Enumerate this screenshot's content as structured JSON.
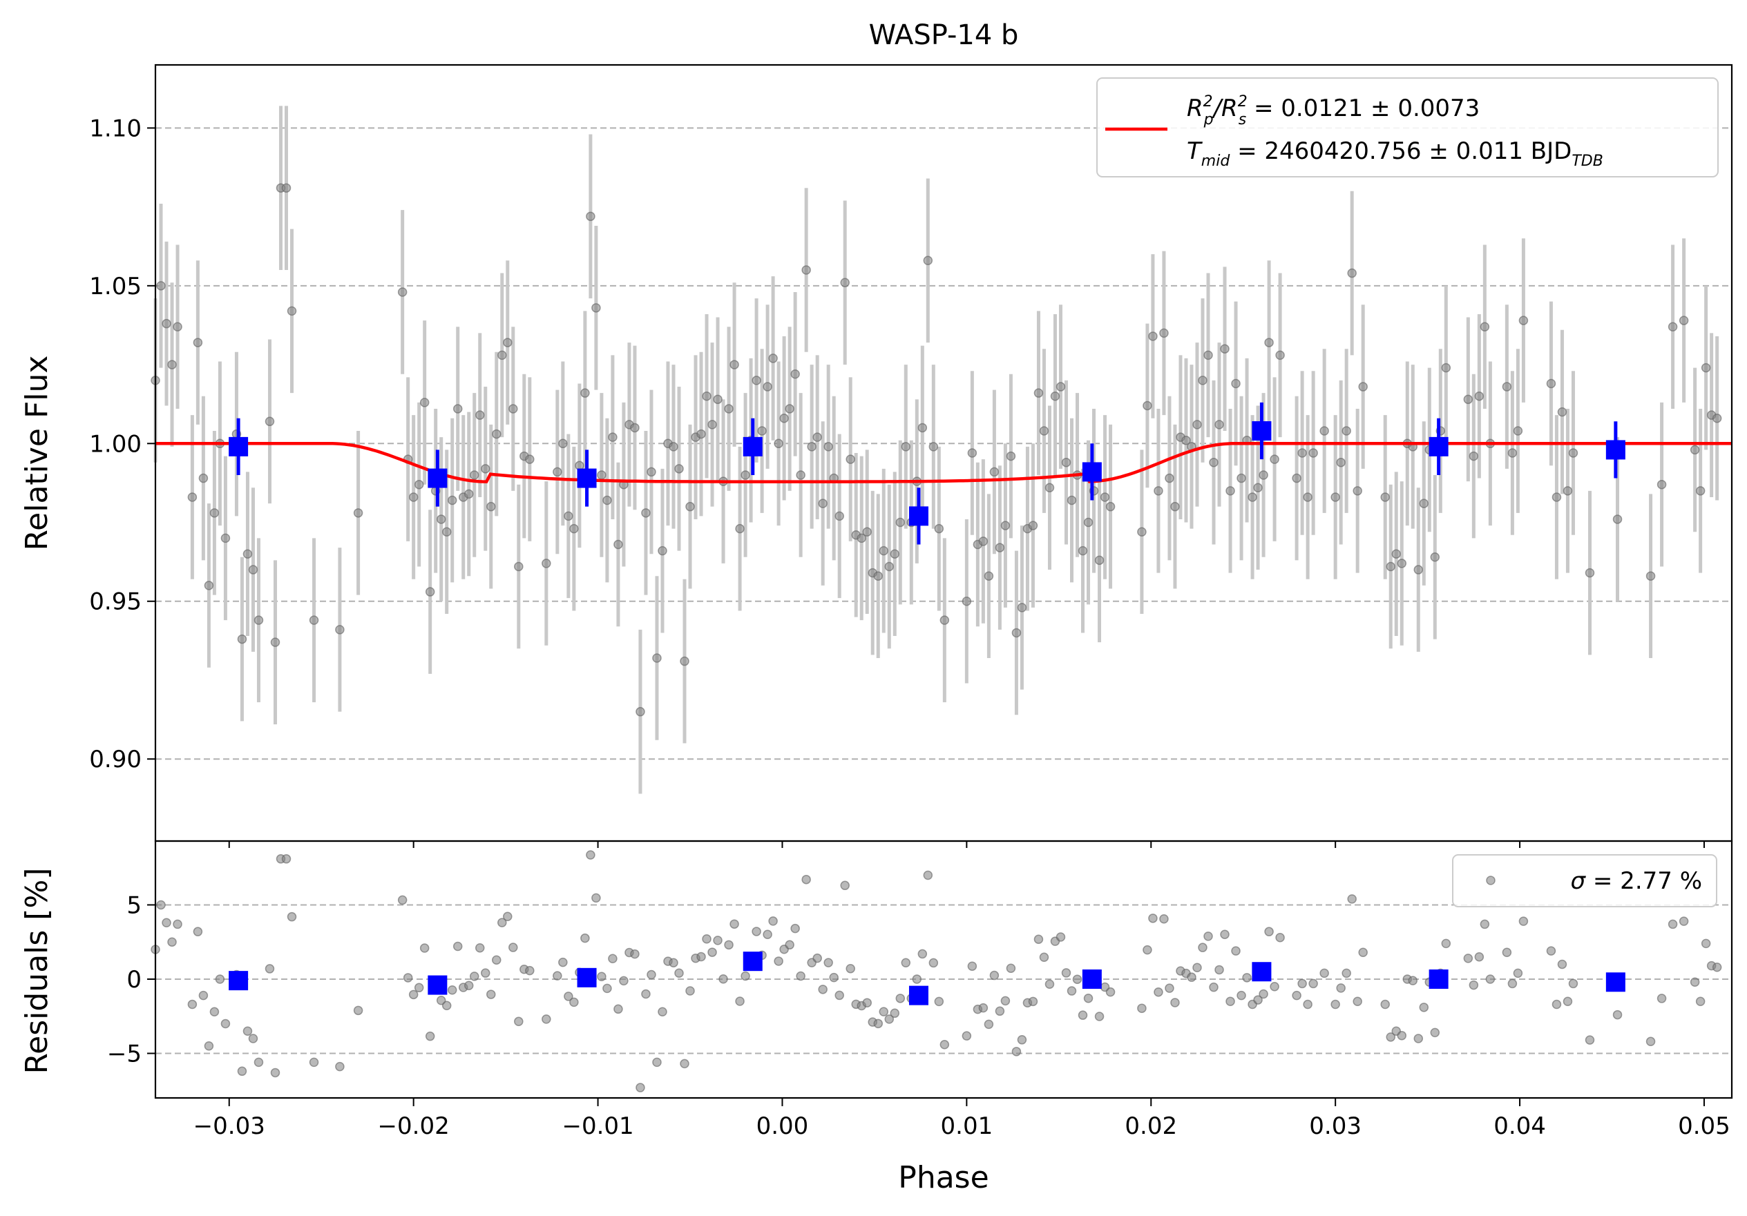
{
  "chart_data": [
    {
      "type": "scatter",
      "title": "WASP-14 b",
      "xlabel": "",
      "ylabel": "Relative Flux",
      "xlim": [
        -0.034,
        0.0515
      ],
      "ylim": [
        0.874,
        1.12
      ],
      "grid": "horizontal dashed",
      "legend": {
        "placement": "top-right",
        "line1": {
          "lhs": "R",
          "sup1": "2",
          "sub1": "p",
          "slash": "/R",
          "sup2": "2",
          "sub2": "s",
          "rhs": " = 0.0121 ± 0.0073"
        },
        "line2": {
          "lhs": "T",
          "sub1": "mid",
          "rhs": " = 2460420.756 ± 0.011 BJD",
          "sub2": "TDB"
        }
      },
      "xticks": [
        "−0.03",
        "−0.02",
        "−0.01",
        "0.00",
        "0.01",
        "0.02",
        "0.03",
        "0.04",
        "0.05"
      ],
      "xtick_values": [
        -0.03,
        -0.02,
        -0.01,
        0.0,
        0.01,
        0.02,
        0.03,
        0.04,
        0.05
      ],
      "yticks": [
        "0.90",
        "0.95",
        "1.00",
        "1.05",
        "1.10"
      ],
      "ytick_values": [
        0.9,
        0.95,
        1.0,
        1.05,
        1.1
      ],
      "colors": {
        "data": "#808080",
        "errorbar": "#c8c8c8",
        "binned": "#0000ff",
        "model": "#ff0000",
        "grid": "#b0b0b0"
      },
      "data": [
        [
          -0.034,
          1.02
        ],
        [
          -0.0337,
          1.05
        ],
        [
          -0.0334,
          1.038
        ],
        [
          -0.0331,
          1.025
        ],
        [
          -0.0328,
          1.037
        ],
        [
          -0.032,
          0.983
        ],
        [
          -0.0317,
          1.032
        ],
        [
          -0.0314,
          0.989
        ],
        [
          -0.0311,
          0.955
        ],
        [
          -0.0308,
          0.978
        ],
        [
          -0.0305,
          1.0
        ],
        [
          -0.0302,
          0.97
        ],
        [
          -0.0296,
          1.003
        ],
        [
          -0.0293,
          0.938
        ],
        [
          -0.029,
          0.965
        ],
        [
          -0.0287,
          0.96
        ],
        [
          -0.0284,
          0.944
        ],
        [
          -0.0278,
          1.007
        ],
        [
          -0.0275,
          0.937
        ],
        [
          -0.0272,
          1.081
        ],
        [
          -0.0269,
          1.081
        ],
        [
          -0.0266,
          1.042
        ],
        [
          -0.0254,
          0.944
        ],
        [
          -0.024,
          0.941
        ],
        [
          -0.023,
          0.978
        ],
        [
          -0.0206,
          1.048
        ],
        [
          -0.0203,
          0.995
        ],
        [
          -0.02,
          0.983
        ],
        [
          -0.0197,
          0.987
        ],
        [
          -0.0194,
          1.013
        ],
        [
          -0.0191,
          0.953
        ],
        [
          -0.0188,
          0.985
        ],
        [
          -0.0185,
          0.976
        ],
        [
          -0.0182,
          0.972
        ],
        [
          -0.0179,
          0.982
        ],
        [
          -0.0176,
          1.011
        ],
        [
          -0.0173,
          0.983
        ],
        [
          -0.017,
          0.984
        ],
        [
          -0.0167,
          0.99
        ],
        [
          -0.0164,
          1.009
        ],
        [
          -0.0161,
          0.992
        ],
        [
          -0.0158,
          0.98
        ],
        [
          -0.0155,
          1.003
        ],
        [
          -0.0152,
          1.028
        ],
        [
          -0.0149,
          1.032
        ],
        [
          -0.0146,
          1.011
        ],
        [
          -0.0143,
          0.961
        ],
        [
          -0.014,
          0.996
        ],
        [
          -0.0137,
          0.995
        ],
        [
          -0.0128,
          0.962
        ],
        [
          -0.0122,
          0.991
        ],
        [
          -0.0119,
          1.0
        ],
        [
          -0.0116,
          0.977
        ],
        [
          -0.0113,
          0.973
        ],
        [
          -0.011,
          0.993
        ],
        [
          -0.0107,
          1.016
        ],
        [
          -0.0104,
          1.072
        ],
        [
          -0.0101,
          1.043
        ],
        [
          -0.0098,
          0.99
        ],
        [
          -0.0095,
          0.982
        ],
        [
          -0.0092,
          1.002
        ],
        [
          -0.0089,
          0.968
        ],
        [
          -0.0086,
          0.987
        ],
        [
          -0.0083,
          1.006
        ],
        [
          -0.008,
          1.005
        ],
        [
          -0.0077,
          0.915
        ],
        [
          -0.0074,
          0.978
        ],
        [
          -0.0071,
          0.991
        ],
        [
          -0.0068,
          0.932
        ],
        [
          -0.0065,
          0.966
        ],
        [
          -0.0062,
          1.0
        ],
        [
          -0.0059,
          0.999
        ],
        [
          -0.0056,
          0.992
        ],
        [
          -0.0053,
          0.931
        ],
        [
          -0.005,
          0.98
        ],
        [
          -0.0047,
          1.002
        ],
        [
          -0.0044,
          1.003
        ],
        [
          -0.0041,
          1.015
        ],
        [
          -0.0038,
          1.006
        ],
        [
          -0.0035,
          1.014
        ],
        [
          -0.0032,
          0.988
        ],
        [
          -0.0029,
          1.011
        ],
        [
          -0.0026,
          1.025
        ],
        [
          -0.0023,
          0.973
        ],
        [
          -0.002,
          0.99
        ],
        [
          -0.0017,
          1.001
        ],
        [
          -0.0014,
          1.02
        ],
        [
          -0.0011,
          1.004
        ],
        [
          -0.0008,
          1.018
        ],
        [
          -0.0005,
          1.027
        ],
        [
          -0.0002,
          1.0
        ],
        [
          0.0001,
          1.008
        ],
        [
          0.0004,
          1.011
        ],
        [
          0.0007,
          1.022
        ],
        [
          0.001,
          0.99
        ],
        [
          0.0013,
          1.055
        ],
        [
          0.0016,
          0.999
        ],
        [
          0.0019,
          1.002
        ],
        [
          0.0022,
          0.981
        ],
        [
          0.0025,
          0.999
        ],
        [
          0.0028,
          0.989
        ],
        [
          0.0031,
          0.977
        ],
        [
          0.0034,
          1.051
        ],
        [
          0.0037,
          0.995
        ],
        [
          0.004,
          0.971
        ],
        [
          0.0043,
          0.97
        ],
        [
          0.0046,
          0.972
        ],
        [
          0.0049,
          0.959
        ],
        [
          0.0052,
          0.958
        ],
        [
          0.0055,
          0.966
        ],
        [
          0.0058,
          0.961
        ],
        [
          0.0061,
          0.965
        ],
        [
          0.0064,
          0.975
        ],
        [
          0.0067,
          0.999
        ],
        [
          0.007,
          0.975
        ],
        [
          0.0073,
          0.988
        ],
        [
          0.0076,
          1.005
        ],
        [
          0.0079,
          1.058
        ],
        [
          0.0082,
          0.999
        ],
        [
          0.0085,
          0.973
        ],
        [
          0.0088,
          0.944
        ],
        [
          0.01,
          0.95
        ],
        [
          0.0103,
          0.997
        ],
        [
          0.0106,
          0.968
        ],
        [
          0.0109,
          0.969
        ],
        [
          0.0112,
          0.958
        ],
        [
          0.0115,
          0.991
        ],
        [
          0.0118,
          0.967
        ],
        [
          0.0121,
          0.974
        ],
        [
          0.0124,
          0.996
        ],
        [
          0.0127,
          0.94
        ],
        [
          0.013,
          0.948
        ],
        [
          0.0133,
          0.973
        ],
        [
          0.0136,
          0.974
        ],
        [
          0.0139,
          1.016
        ],
        [
          0.0142,
          1.004
        ],
        [
          0.0145,
          0.986
        ],
        [
          0.0148,
          1.015
        ],
        [
          0.0151,
          1.018
        ],
        [
          0.0154,
          0.994
        ],
        [
          0.0157,
          0.982
        ],
        [
          0.016,
          0.99
        ],
        [
          0.0163,
          0.966
        ],
        [
          0.0166,
          0.975
        ],
        [
          0.0169,
          0.985
        ],
        [
          0.0172,
          0.963
        ],
        [
          0.0175,
          0.983
        ],
        [
          0.0178,
          0.98
        ],
        [
          0.0195,
          0.972
        ],
        [
          0.0198,
          1.012
        ],
        [
          0.0201,
          1.034
        ],
        [
          0.0204,
          0.985
        ],
        [
          0.0207,
          1.035
        ],
        [
          0.021,
          0.989
        ],
        [
          0.0213,
          0.98
        ],
        [
          0.0216,
          1.002
        ],
        [
          0.0219,
          1.001
        ],
        [
          0.0222,
          0.999
        ],
        [
          0.0225,
          1.006
        ],
        [
          0.0228,
          1.02
        ],
        [
          0.0231,
          1.028
        ],
        [
          0.0234,
          0.994
        ],
        [
          0.0237,
          1.006
        ],
        [
          0.024,
          1.03
        ],
        [
          0.0243,
          0.985
        ],
        [
          0.0246,
          1.019
        ],
        [
          0.0249,
          0.989
        ],
        [
          0.0252,
          1.001
        ],
        [
          0.0255,
          0.983
        ],
        [
          0.0258,
          0.986
        ],
        [
          0.0261,
          0.99
        ],
        [
          0.0264,
          1.032
        ],
        [
          0.0267,
          0.995
        ],
        [
          0.027,
          1.028
        ],
        [
          0.0279,
          0.989
        ],
        [
          0.0282,
          0.997
        ],
        [
          0.0285,
          0.983
        ],
        [
          0.0288,
          0.997
        ],
        [
          0.0294,
          1.004
        ],
        [
          0.03,
          0.983
        ],
        [
          0.0303,
          0.994
        ],
        [
          0.0306,
          1.004
        ],
        [
          0.0309,
          1.054
        ],
        [
          0.0312,
          0.985
        ],
        [
          0.0315,
          1.018
        ],
        [
          0.0327,
          0.983
        ],
        [
          0.033,
          0.961
        ],
        [
          0.0333,
          0.965
        ],
        [
          0.0336,
          0.962
        ],
        [
          0.0339,
          1.0
        ],
        [
          0.0342,
          0.999
        ],
        [
          0.0345,
          0.96
        ],
        [
          0.0348,
          0.981
        ],
        [
          0.0351,
          0.998
        ],
        [
          0.0354,
          0.964
        ],
        [
          0.0357,
          1.004
        ],
        [
          0.036,
          1.024
        ],
        [
          0.0372,
          1.014
        ],
        [
          0.0375,
          0.996
        ],
        [
          0.0378,
          1.015
        ],
        [
          0.0381,
          1.037
        ],
        [
          0.0384,
          1.0
        ],
        [
          0.0393,
          1.018
        ],
        [
          0.0396,
          0.997
        ],
        [
          0.0399,
          1.004
        ],
        [
          0.0402,
          1.039
        ],
        [
          0.0417,
          1.019
        ],
        [
          0.042,
          0.983
        ],
        [
          0.0423,
          1.01
        ],
        [
          0.0426,
          0.985
        ],
        [
          0.0429,
          0.997
        ],
        [
          0.0438,
          0.959
        ],
        [
          0.0453,
          0.976
        ],
        [
          0.0471,
          0.958
        ],
        [
          0.0477,
          0.987
        ],
        [
          0.0483,
          1.037
        ],
        [
          0.0489,
          1.039
        ],
        [
          0.0495,
          0.998
        ],
        [
          0.0498,
          0.985
        ],
        [
          0.0501,
          1.024
        ],
        [
          0.0504,
          1.009
        ],
        [
          0.0507,
          1.008
        ]
      ],
      "binned": [
        [
          -0.0295,
          0.999
        ],
        [
          -0.0187,
          0.989
        ],
        [
          -0.0106,
          0.989
        ],
        [
          -0.0016,
          0.999
        ],
        [
          0.0074,
          0.977
        ],
        [
          0.0168,
          0.991
        ],
        [
          0.026,
          1.004
        ],
        [
          0.0356,
          0.999
        ],
        [
          0.0452,
          0.998
        ]
      ],
      "model": {
        "name": "",
        "baseline": 1.0,
        "depth": 0.0121,
        "t1": -0.0245,
        "t2": -0.016,
        "t3": 0.0165,
        "t4": 0.0245,
        "mid_phase": 0.0
      }
    },
    {
      "type": "scatter",
      "title": "",
      "xlabel": "Phase",
      "ylabel": "Residuals [%]",
      "xlim": [
        -0.034,
        0.0515
      ],
      "ylim": [
        -8,
        9.3
      ],
      "grid": "horizontal dashed",
      "legend": {
        "placement": "top-right",
        "sigma": "σ",
        "text": " = 2.77 %"
      },
      "xticks": [
        "−0.03",
        "−0.02",
        "−0.01",
        "0.00",
        "0.01",
        "0.02",
        "0.03",
        "0.04",
        "0.05"
      ],
      "xtick_values": [
        -0.03,
        -0.02,
        -0.01,
        0.0,
        0.01,
        0.02,
        0.03,
        0.04,
        0.05
      ],
      "yticks": [
        "−5",
        "0",
        "5"
      ],
      "ytick_values": [
        -5,
        0,
        5
      ],
      "binned": [
        [
          -0.0295,
          -0.1
        ],
        [
          -0.0187,
          -0.4
        ],
        [
          -0.0106,
          0.1
        ],
        [
          -0.0016,
          1.2
        ],
        [
          0.0074,
          -1.1
        ],
        [
          0.0168,
          0.0
        ],
        [
          0.026,
          0.5
        ],
        [
          0.0356,
          0.0
        ],
        [
          0.0452,
          -0.2
        ]
      ]
    }
  ]
}
